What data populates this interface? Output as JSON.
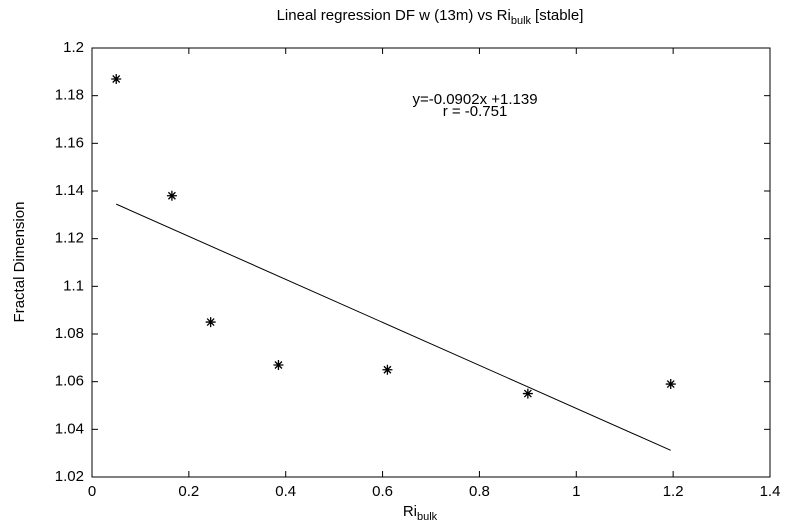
{
  "chart_data": {
    "type": "scatter",
    "title": {
      "text": "Lineal regression DF w (13m) vs Ri",
      "subscript": "bulk",
      "suffix": "[stable]"
    },
    "x_label": {
      "text": "Ri",
      "subscript": "bulk"
    },
    "y_label": "Fractal Dimension",
    "annotations": [
      "y=-0.0902x +1.139",
      "r = -0.751"
    ],
    "series": [
      {
        "color": "#000000",
        "x": [
          0.05,
          0.165,
          0.245,
          0.385,
          0.61,
          0.9,
          1.195
        ],
        "values": [
          1.187,
          1.138,
          1.085,
          1.067,
          1.065,
          1.055,
          1.059
        ]
      }
    ],
    "fit": {
      "color": "#000000",
      "x": [
        0.05,
        1.195
      ],
      "values": [
        1.1345,
        1.0312
      ]
    },
    "xlim": [
      0,
      1.4
    ],
    "xticks": [
      0,
      0.2,
      0.4,
      0.6,
      0.8,
      1,
      1.2,
      1.4
    ],
    "ylim": [
      1.02,
      1.2
    ],
    "yticks": [
      1.02,
      1.04,
      1.06,
      1.08,
      1.1,
      1.12,
      1.14,
      1.16,
      1.18,
      1.2
    ],
    "grid": false
  }
}
